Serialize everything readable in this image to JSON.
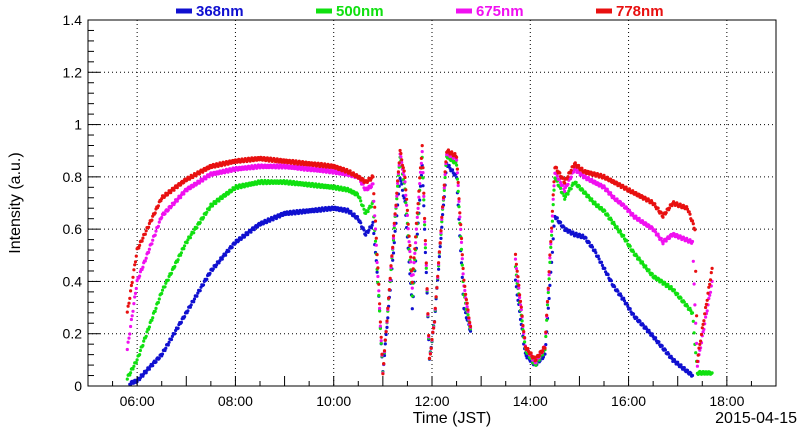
{
  "chart_data": {
    "type": "scatter",
    "xlabel": "Time (JST)",
    "ylabel": "Intensity (a.u.)",
    "date_label": "2015-04-15",
    "xlim": [
      5.0,
      19.0
    ],
    "ylim": [
      0.0,
      1.4
    ],
    "x_ticks": [
      {
        "value": 6,
        "label": "06:00"
      },
      {
        "value": 8,
        "label": "08:00"
      },
      {
        "value": 10,
        "label": "10:00"
      },
      {
        "value": 12,
        "label": "12:00"
      },
      {
        "value": 14,
        "label": "14:00"
      },
      {
        "value": 16,
        "label": "16:00"
      },
      {
        "value": 18,
        "label": "18:00"
      }
    ],
    "y_ticks": [
      {
        "value": 0,
        "label": "0"
      },
      {
        "value": 0.2,
        "label": "0.2"
      },
      {
        "value": 0.4,
        "label": "0.4"
      },
      {
        "value": 0.6,
        "label": "0.6"
      },
      {
        "value": 0.8,
        "label": "0.8"
      },
      {
        "value": 1.0,
        "label": "1"
      },
      {
        "value": 1.2,
        "label": "1.2"
      },
      {
        "value": 1.4,
        "label": "1.4"
      }
    ],
    "grid": true,
    "legend_position": "top",
    "series": [
      {
        "name": "368nm",
        "color": "#1010d0",
        "points": [
          [
            5.85,
            0.01
          ],
          [
            6.0,
            0.02
          ],
          [
            6.5,
            0.12
          ],
          [
            7.0,
            0.28
          ],
          [
            7.5,
            0.44
          ],
          [
            8.0,
            0.55
          ],
          [
            8.5,
            0.62
          ],
          [
            9.0,
            0.66
          ],
          [
            9.5,
            0.67
          ],
          [
            10.0,
            0.68
          ],
          [
            10.3,
            0.67
          ],
          [
            10.5,
            0.64
          ],
          [
            10.65,
            0.58
          ],
          [
            10.8,
            0.62
          ],
          [
            10.9,
            0.4
          ],
          [
            11.0,
            0.05
          ],
          [
            11.35,
            0.8
          ],
          [
            11.45,
            0.7
          ],
          [
            11.6,
            0.3
          ],
          [
            11.8,
            0.85
          ],
          [
            11.95,
            0.1
          ],
          [
            12.05,
            0.25
          ],
          [
            12.3,
            0.85
          ],
          [
            12.5,
            0.8
          ],
          [
            12.65,
            0.3
          ],
          [
            12.8,
            0.2
          ],
          [
            13.7,
            0.4
          ],
          [
            13.9,
            0.12
          ],
          [
            14.1,
            0.08
          ],
          [
            14.3,
            0.12
          ],
          [
            14.5,
            0.65
          ],
          [
            14.7,
            0.6
          ],
          [
            14.9,
            0.58
          ],
          [
            15.1,
            0.57
          ],
          [
            15.3,
            0.52
          ],
          [
            15.5,
            0.45
          ],
          [
            15.7,
            0.38
          ],
          [
            15.9,
            0.33
          ],
          [
            16.1,
            0.27
          ],
          [
            16.5,
            0.19
          ],
          [
            16.9,
            0.1
          ],
          [
            17.3,
            0.04
          ]
        ]
      },
      {
        "name": "500nm",
        "color": "#10e010",
        "points": [
          [
            5.8,
            0.03
          ],
          [
            6.0,
            0.1
          ],
          [
            6.5,
            0.36
          ],
          [
            7.0,
            0.55
          ],
          [
            7.5,
            0.69
          ],
          [
            8.0,
            0.76
          ],
          [
            8.5,
            0.78
          ],
          [
            9.0,
            0.78
          ],
          [
            9.5,
            0.77
          ],
          [
            10.0,
            0.76
          ],
          [
            10.3,
            0.75
          ],
          [
            10.5,
            0.73
          ],
          [
            10.65,
            0.66
          ],
          [
            10.8,
            0.7
          ],
          [
            10.9,
            0.4
          ],
          [
            11.0,
            0.05
          ],
          [
            11.35,
            0.88
          ],
          [
            11.45,
            0.75
          ],
          [
            11.6,
            0.35
          ],
          [
            11.8,
            0.88
          ],
          [
            11.95,
            0.1
          ],
          [
            12.05,
            0.25
          ],
          [
            12.3,
            0.88
          ],
          [
            12.5,
            0.85
          ],
          [
            12.65,
            0.35
          ],
          [
            12.8,
            0.2
          ],
          [
            13.7,
            0.45
          ],
          [
            13.9,
            0.14
          ],
          [
            14.1,
            0.08
          ],
          [
            14.3,
            0.14
          ],
          [
            14.5,
            0.8
          ],
          [
            14.7,
            0.72
          ],
          [
            14.9,
            0.78
          ],
          [
            15.1,
            0.74
          ],
          [
            15.3,
            0.7
          ],
          [
            15.5,
            0.67
          ],
          [
            15.7,
            0.62
          ],
          [
            15.9,
            0.57
          ],
          [
            16.1,
            0.51
          ],
          [
            16.5,
            0.42
          ],
          [
            16.9,
            0.37
          ],
          [
            17.3,
            0.28
          ],
          [
            17.4,
            0.05
          ],
          [
            17.7,
            0.05
          ]
        ]
      },
      {
        "name": "675nm",
        "color": "#f010f0",
        "points": [
          [
            5.8,
            0.14
          ],
          [
            6.0,
            0.4
          ],
          [
            6.5,
            0.65
          ],
          [
            7.0,
            0.75
          ],
          [
            7.5,
            0.81
          ],
          [
            8.0,
            0.83
          ],
          [
            8.5,
            0.84
          ],
          [
            9.0,
            0.84
          ],
          [
            9.5,
            0.83
          ],
          [
            10.0,
            0.82
          ],
          [
            10.3,
            0.81
          ],
          [
            10.5,
            0.8
          ],
          [
            10.65,
            0.75
          ],
          [
            10.8,
            0.77
          ],
          [
            10.9,
            0.42
          ],
          [
            11.0,
            0.05
          ],
          [
            11.35,
            0.89
          ],
          [
            11.45,
            0.78
          ],
          [
            11.6,
            0.38
          ],
          [
            11.8,
            0.9
          ],
          [
            11.95,
            0.1
          ],
          [
            12.05,
            0.25
          ],
          [
            12.3,
            0.89
          ],
          [
            12.5,
            0.87
          ],
          [
            12.65,
            0.38
          ],
          [
            12.8,
            0.2
          ],
          [
            13.7,
            0.48
          ],
          [
            13.9,
            0.15
          ],
          [
            14.1,
            0.09
          ],
          [
            14.3,
            0.15
          ],
          [
            14.5,
            0.82
          ],
          [
            14.7,
            0.75
          ],
          [
            14.9,
            0.83
          ],
          [
            15.1,
            0.8
          ],
          [
            15.3,
            0.78
          ],
          [
            15.5,
            0.76
          ],
          [
            15.7,
            0.72
          ],
          [
            15.9,
            0.69
          ],
          [
            16.1,
            0.65
          ],
          [
            16.5,
            0.6
          ],
          [
            16.7,
            0.55
          ],
          [
            16.9,
            0.58
          ],
          [
            17.3,
            0.55
          ],
          [
            17.4,
            0.08
          ],
          [
            17.7,
            0.4
          ]
        ]
      },
      {
        "name": "778nm",
        "color": "#e81010",
        "points": [
          [
            5.8,
            0.28
          ],
          [
            6.0,
            0.52
          ],
          [
            6.5,
            0.72
          ],
          [
            7.0,
            0.79
          ],
          [
            7.5,
            0.84
          ],
          [
            8.0,
            0.86
          ],
          [
            8.5,
            0.87
          ],
          [
            9.0,
            0.86
          ],
          [
            9.5,
            0.85
          ],
          [
            10.0,
            0.84
          ],
          [
            10.3,
            0.82
          ],
          [
            10.5,
            0.8
          ],
          [
            10.65,
            0.78
          ],
          [
            10.8,
            0.8
          ],
          [
            10.9,
            0.45
          ],
          [
            11.0,
            0.05
          ],
          [
            11.35,
            0.9
          ],
          [
            11.45,
            0.8
          ],
          [
            11.6,
            0.4
          ],
          [
            11.8,
            0.92
          ],
          [
            11.95,
            0.1
          ],
          [
            12.05,
            0.25
          ],
          [
            12.3,
            0.9
          ],
          [
            12.5,
            0.88
          ],
          [
            12.65,
            0.4
          ],
          [
            12.8,
            0.2
          ],
          [
            13.7,
            0.5
          ],
          [
            13.9,
            0.15
          ],
          [
            14.1,
            0.1
          ],
          [
            14.3,
            0.15
          ],
          [
            14.5,
            0.84
          ],
          [
            14.7,
            0.78
          ],
          [
            14.9,
            0.85
          ],
          [
            15.1,
            0.82
          ],
          [
            15.3,
            0.81
          ],
          [
            15.5,
            0.8
          ],
          [
            15.7,
            0.78
          ],
          [
            15.9,
            0.76
          ],
          [
            16.1,
            0.74
          ],
          [
            16.5,
            0.7
          ],
          [
            16.7,
            0.65
          ],
          [
            16.9,
            0.7
          ],
          [
            17.2,
            0.68
          ],
          [
            17.35,
            0.6
          ],
          [
            17.4,
            0.1
          ],
          [
            17.7,
            0.45
          ]
        ]
      }
    ]
  }
}
